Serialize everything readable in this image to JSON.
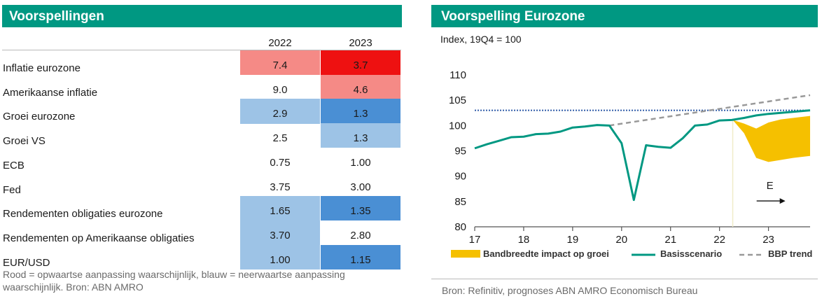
{
  "left": {
    "title": "Voorspellingen",
    "years": [
      "2022",
      "2023"
    ],
    "rows": [
      {
        "label": "Inflatie eurozone",
        "v2022": "7.4",
        "v2023": "3.7",
        "c2022": "#f58a86",
        "c2023": "#ee1111"
      },
      {
        "label": "Amerikaanse inflatie",
        "v2022": "9.0",
        "v2023": "4.6",
        "c2022": "",
        "c2023": "#f58a86"
      },
      {
        "label": "Groei eurozone",
        "v2022": "2.9",
        "v2023": "1.3",
        "c2022": "#9dc3e6",
        "c2023": "#4a8fd4"
      },
      {
        "label": "Groei VS",
        "v2022": "2.5",
        "v2023": "1.3",
        "c2022": "",
        "c2023": "#9dc3e6"
      },
      {
        "label": "ECB",
        "v2022": "0.75",
        "v2023": "1.00",
        "c2022": "",
        "c2023": ""
      },
      {
        "label": "Fed",
        "v2022": "3.75",
        "v2023": "3.00",
        "c2022": "",
        "c2023": ""
      },
      {
        "label": "Rendementen obligaties eurozone",
        "v2022": "1.65",
        "v2023": "1.35",
        "c2022": "#9dc3e6",
        "c2023": "#4a8fd4"
      },
      {
        "label": "Rendementen op Amerikaanse obligaties",
        "v2022": "3.70",
        "v2023": "2.80",
        "c2022": "#9dc3e6",
        "c2023": ""
      },
      {
        "label": "EUR/USD",
        "v2022": "1.00",
        "v2023": "1.15",
        "c2022": "#9dc3e6",
        "c2023": "#4a8fd4"
      }
    ],
    "footnote": "Rood = opwaartse aanpassing waarschijnlijk, blauw = neerwaartse aanpassing waarschijnlijk. Bron: ABN AMRO"
  },
  "right": {
    "title": "Voorspelling Eurozone",
    "subtitle": "Index, 19Q4 = 100",
    "source": "Bron: Refinitiv, prognoses ABN AMRO Economisch Bureau"
  },
  "chart_data": {
    "type": "line",
    "ylim": [
      80,
      110
    ],
    "yticks": [
      80,
      85,
      90,
      95,
      100,
      105,
      110
    ],
    "xlim": [
      2017,
      2023.85
    ],
    "xticks": [
      {
        "x": 2017,
        "label": "17"
      },
      {
        "x": 2018,
        "label": "18"
      },
      {
        "x": 2019,
        "label": "19"
      },
      {
        "x": 2020,
        "label": "20"
      },
      {
        "x": 2021,
        "label": "21"
      },
      {
        "x": 2022,
        "label": "22"
      },
      {
        "x": 2023,
        "label": "23"
      }
    ],
    "reference_level": 103,
    "forecast_marker": {
      "x": 2022.27,
      "label": "E"
    },
    "colors": {
      "basis": "#009882",
      "band": "#f5c000",
      "trend": "#999999",
      "reference": "#2f5ba8"
    },
    "series": [
      {
        "name": "Basisscenario",
        "points": [
          [
            2017.0,
            95.5
          ],
          [
            2017.25,
            96.3
          ],
          [
            2017.5,
            97.0
          ],
          [
            2017.75,
            97.7
          ],
          [
            2018.0,
            97.8
          ],
          [
            2018.25,
            98.3
          ],
          [
            2018.5,
            98.4
          ],
          [
            2018.75,
            98.8
          ],
          [
            2019.0,
            99.6
          ],
          [
            2019.25,
            99.8
          ],
          [
            2019.5,
            100.1
          ],
          [
            2019.75,
            100.0
          ],
          [
            2020.0,
            96.5
          ],
          [
            2020.25,
            85.3
          ],
          [
            2020.5,
            96.1
          ],
          [
            2020.75,
            95.8
          ],
          [
            2021.0,
            95.6
          ],
          [
            2021.25,
            97.5
          ],
          [
            2021.5,
            100.0
          ],
          [
            2021.75,
            100.2
          ],
          [
            2022.0,
            101.0
          ],
          [
            2022.25,
            101.1
          ],
          [
            2022.5,
            101.5
          ],
          [
            2022.75,
            102.0
          ],
          [
            2023.0,
            102.3
          ],
          [
            2023.25,
            102.5
          ],
          [
            2023.5,
            102.7
          ],
          [
            2023.85,
            103.0
          ]
        ]
      },
      {
        "name": "BBP trend",
        "points": [
          [
            2019.75,
            100.0
          ],
          [
            2023.85,
            106.0
          ]
        ]
      },
      {
        "name": "Bandbreedte impact op groei",
        "upper": [
          [
            2022.27,
            101.1
          ],
          [
            2022.5,
            100.4
          ],
          [
            2022.75,
            99.4
          ],
          [
            2023.0,
            100.6
          ],
          [
            2023.25,
            101.2
          ],
          [
            2023.5,
            101.5
          ],
          [
            2023.85,
            101.9
          ]
        ],
        "lower": [
          [
            2022.27,
            101.1
          ],
          [
            2022.5,
            98.5
          ],
          [
            2022.75,
            93.6
          ],
          [
            2023.0,
            92.8
          ],
          [
            2023.25,
            93.2
          ],
          [
            2023.5,
            93.6
          ],
          [
            2023.85,
            94.0
          ]
        ]
      }
    ],
    "legend": [
      "Bandbreedte impact op groei",
      "Basisscenario",
      "BBP trend"
    ]
  }
}
